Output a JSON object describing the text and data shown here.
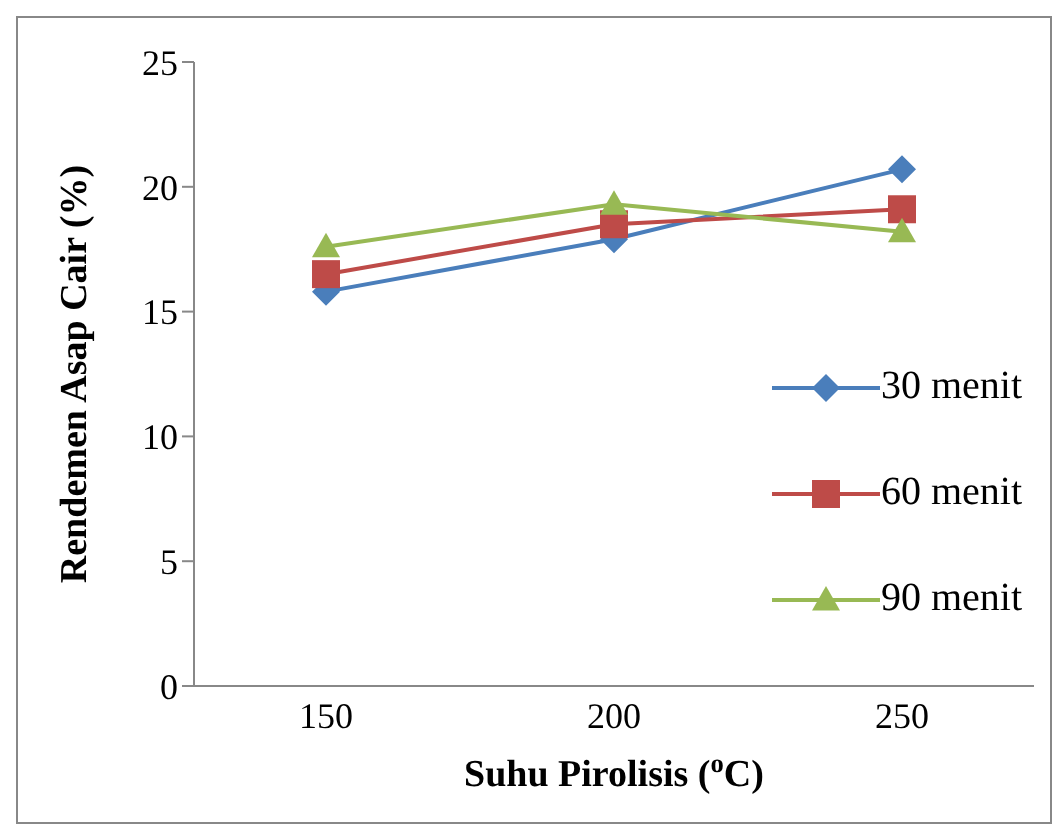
{
  "chart_data": {
    "type": "line",
    "xlabel": "Suhu Pirolisis ($^{o}$C)",
    "ylabel": "Rendemen Asap Cair (%)",
    "categories": [
      "150",
      "200",
      "250"
    ],
    "series": [
      {
        "name": "30 menit",
        "color": "#4a7ebb",
        "marker": "diamond",
        "values": [
          15.8,
          17.9,
          20.7
        ]
      },
      {
        "name": "60 menit",
        "color": "#be4b48",
        "marker": "square",
        "values": [
          16.5,
          18.5,
          19.1
        ]
      },
      {
        "name": "90 menit",
        "color": "#98b954",
        "marker": "triangle",
        "values": [
          17.6,
          19.3,
          18.2
        ]
      }
    ],
    "ylim": [
      0,
      25
    ],
    "yticks": [
      0,
      5,
      10,
      15,
      20,
      25
    ],
    "grid": false,
    "legend": "right",
    "line_style": "solid"
  }
}
